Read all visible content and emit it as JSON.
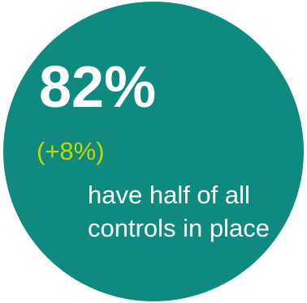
{
  "stat": {
    "value": "82%",
    "change": "(+8%)",
    "caption": "have half of all controls in place"
  },
  "colors": {
    "circle": "#0e8a7f",
    "change": "#c4d600",
    "text": "#ffffff"
  }
}
